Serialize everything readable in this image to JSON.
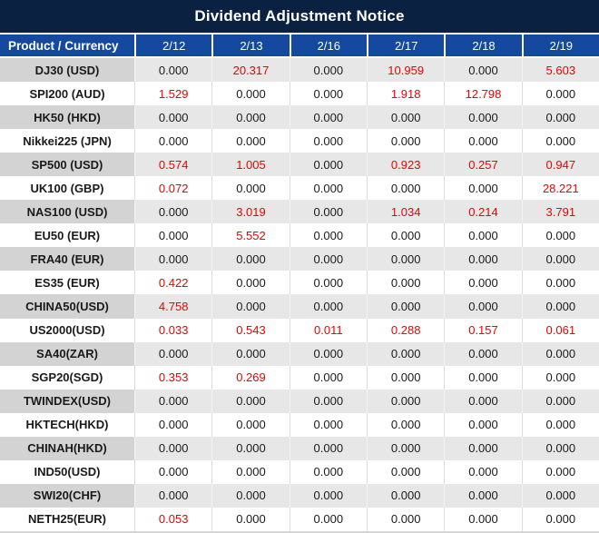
{
  "title": "Dividend Adjustment Notice",
  "colors": {
    "title_bg": "#0B2142",
    "header_bg": "#1549A0",
    "row_gray": "#E7E7E7",
    "product_gray": "#D3D3D3",
    "value_black": "#1A1A1A",
    "value_red": "#EE0000"
  },
  "chart_data": {
    "type": "table",
    "title": "Dividend Adjustment Notice",
    "product_header": "Product / Currency",
    "dates": [
      "2/12",
      "2/13",
      "2/16",
      "2/17",
      "2/18",
      "2/19"
    ],
    "rows": [
      {
        "product": "DJ30 (USD)",
        "values": [
          "0.000",
          "20.317",
          "0.000",
          "10.959",
          "0.000",
          "5.603"
        ],
        "red": [
          false,
          true,
          false,
          true,
          false,
          true
        ]
      },
      {
        "product": "SPI200 (AUD)",
        "values": [
          "1.529",
          "0.000",
          "0.000",
          "1.918",
          "12.798",
          "0.000"
        ],
        "red": [
          true,
          false,
          false,
          true,
          true,
          false
        ]
      },
      {
        "product": "HK50 (HKD)",
        "values": [
          "0.000",
          "0.000",
          "0.000",
          "0.000",
          "0.000",
          "0.000"
        ],
        "red": [
          false,
          false,
          false,
          false,
          false,
          false
        ]
      },
      {
        "product": "Nikkei225 (JPN)",
        "values": [
          "0.000",
          "0.000",
          "0.000",
          "0.000",
          "0.000",
          "0.000"
        ],
        "red": [
          false,
          false,
          false,
          false,
          false,
          false
        ]
      },
      {
        "product": "SP500 (USD)",
        "values": [
          "0.574",
          "1.005",
          "0.000",
          "0.923",
          "0.257",
          "0.947"
        ],
        "red": [
          true,
          true,
          false,
          true,
          true,
          true
        ]
      },
      {
        "product": "UK100 (GBP)",
        "values": [
          "0.072",
          "0.000",
          "0.000",
          "0.000",
          "0.000",
          "28.221"
        ],
        "red": [
          true,
          false,
          false,
          false,
          false,
          true
        ]
      },
      {
        "product": "NAS100 (USD)",
        "values": [
          "0.000",
          "3.019",
          "0.000",
          "1.034",
          "0.214",
          "3.791"
        ],
        "red": [
          false,
          true,
          false,
          true,
          true,
          true
        ]
      },
      {
        "product": "EU50 (EUR)",
        "values": [
          "0.000",
          "5.552",
          "0.000",
          "0.000",
          "0.000",
          "0.000"
        ],
        "red": [
          false,
          true,
          false,
          false,
          false,
          false
        ]
      },
      {
        "product": "FRA40 (EUR)",
        "values": [
          "0.000",
          "0.000",
          "0.000",
          "0.000",
          "0.000",
          "0.000"
        ],
        "red": [
          false,
          false,
          false,
          false,
          false,
          false
        ]
      },
      {
        "product": "ES35 (EUR)",
        "values": [
          "0.422",
          "0.000",
          "0.000",
          "0.000",
          "0.000",
          "0.000"
        ],
        "red": [
          true,
          false,
          false,
          false,
          false,
          false
        ]
      },
      {
        "product": "CHINA50(USD)",
        "values": [
          "4.758",
          "0.000",
          "0.000",
          "0.000",
          "0.000",
          "0.000"
        ],
        "red": [
          true,
          false,
          false,
          false,
          false,
          false
        ]
      },
      {
        "product": "US2000(USD)",
        "values": [
          "0.033",
          "0.543",
          "0.011",
          "0.288",
          "0.157",
          "0.061"
        ],
        "red": [
          true,
          true,
          true,
          true,
          true,
          true
        ]
      },
      {
        "product": "SA40(ZAR)",
        "values": [
          "0.000",
          "0.000",
          "0.000",
          "0.000",
          "0.000",
          "0.000"
        ],
        "red": [
          false,
          false,
          false,
          false,
          false,
          false
        ]
      },
      {
        "product": "SGP20(SGD)",
        "values": [
          "0.353",
          "0.269",
          "0.000",
          "0.000",
          "0.000",
          "0.000"
        ],
        "red": [
          true,
          true,
          false,
          false,
          false,
          false
        ]
      },
      {
        "product": "TWINDEX(USD)",
        "values": [
          "0.000",
          "0.000",
          "0.000",
          "0.000",
          "0.000",
          "0.000"
        ],
        "red": [
          false,
          false,
          false,
          false,
          false,
          false
        ]
      },
      {
        "product": "HKTECH(HKD)",
        "values": [
          "0.000",
          "0.000",
          "0.000",
          "0.000",
          "0.000",
          "0.000"
        ],
        "red": [
          false,
          false,
          false,
          false,
          false,
          false
        ]
      },
      {
        "product": "CHINAH(HKD)",
        "values": [
          "0.000",
          "0.000",
          "0.000",
          "0.000",
          "0.000",
          "0.000"
        ],
        "red": [
          false,
          false,
          false,
          false,
          false,
          false
        ]
      },
      {
        "product": "IND50(USD)",
        "values": [
          "0.000",
          "0.000",
          "0.000",
          "0.000",
          "0.000",
          "0.000"
        ],
        "red": [
          false,
          false,
          false,
          false,
          false,
          false
        ]
      },
      {
        "product": "SWI20(CHF)",
        "values": [
          "0.000",
          "0.000",
          "0.000",
          "0.000",
          "0.000",
          "0.000"
        ],
        "red": [
          false,
          false,
          false,
          false,
          false,
          false
        ]
      },
      {
        "product": "NETH25(EUR)",
        "values": [
          "0.053",
          "0.000",
          "0.000",
          "0.000",
          "0.000",
          "0.000"
        ],
        "red": [
          true,
          false,
          false,
          false,
          false,
          false
        ]
      }
    ]
  }
}
